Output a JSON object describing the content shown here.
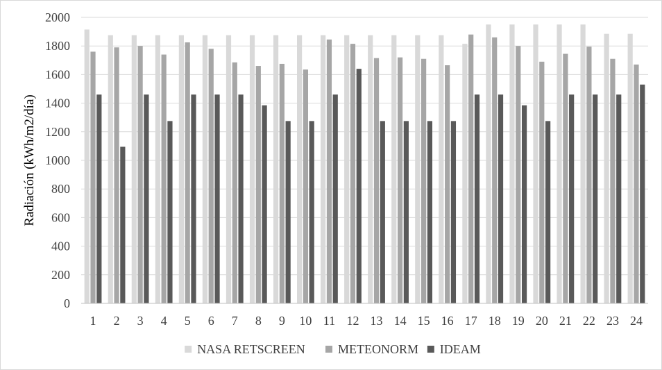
{
  "chart_data": {
    "type": "bar",
    "title": "",
    "xlabel": "",
    "ylabel": "Radiación (kWh/m2/día)",
    "ylim": [
      0,
      2000
    ],
    "yticks": [
      0,
      200,
      400,
      600,
      800,
      1000,
      1200,
      1400,
      1600,
      1800,
      2000
    ],
    "grid": true,
    "legend_position": "bottom",
    "categories": [
      "1",
      "2",
      "3",
      "4",
      "5",
      "6",
      "7",
      "8",
      "9",
      "10",
      "11",
      "12",
      "13",
      "14",
      "15",
      "16",
      "17",
      "18",
      "19",
      "20",
      "21",
      "22",
      "23",
      "24"
    ],
    "series": [
      {
        "name": "NASA RETSCREEN",
        "color": "#d9d9d9",
        "values": [
          1915,
          1875,
          1875,
          1875,
          1875,
          1875,
          1875,
          1875,
          1875,
          1875,
          1875,
          1875,
          1875,
          1875,
          1875,
          1875,
          1815,
          1950,
          1950,
          1950,
          1950,
          1950,
          1885,
          1885
        ]
      },
      {
        "name": "METEONORM",
        "color": "#a6a6a6",
        "values": [
          1760,
          1790,
          1800,
          1740,
          1825,
          1780,
          1685,
          1660,
          1675,
          1635,
          1845,
          1815,
          1715,
          1720,
          1710,
          1665,
          1880,
          1860,
          1800,
          1690,
          1745,
          1795,
          1710,
          1670
        ]
      },
      {
        "name": "IDEAM",
        "color": "#595959",
        "values": [
          1460,
          1095,
          1460,
          1275,
          1460,
          1460,
          1460,
          1385,
          1275,
          1275,
          1460,
          1640,
          1275,
          1275,
          1275,
          1275,
          1460,
          1460,
          1385,
          1275,
          1460,
          1460,
          1460,
          1530
        ]
      }
    ]
  }
}
